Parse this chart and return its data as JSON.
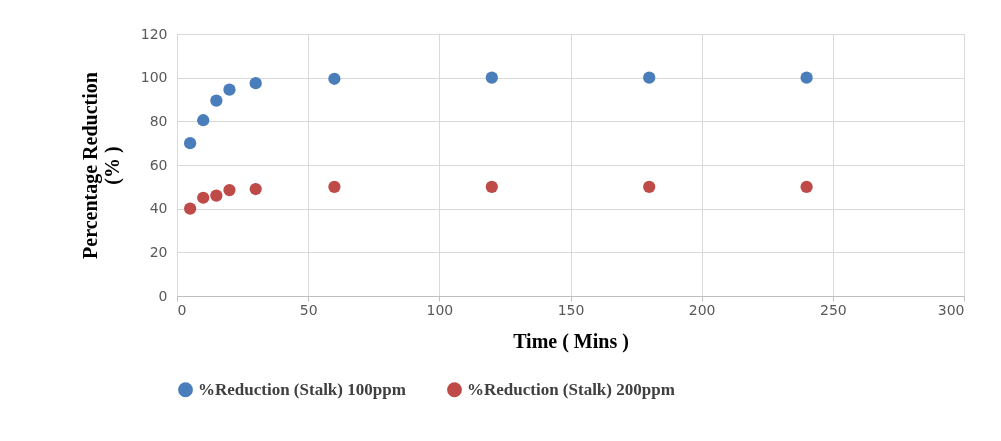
{
  "chart_data": {
    "type": "scatter",
    "xlabel": "Time ( Mins )",
    "ylabel": "Percentage Reduction\n(% )",
    "x": [
      5,
      10,
      15,
      20,
      30,
      60,
      120,
      180,
      240
    ],
    "series": [
      {
        "name": "%Reduction (Stalk) 100ppm",
        "color": "#4a7ebb",
        "values": [
          70,
          80.5,
          89.5,
          94.5,
          97.5,
          99.5,
          100,
          100,
          100
        ]
      },
      {
        "name": "%Reduction (Stalk) 200ppm",
        "color": "#be4b48",
        "values": [
          40,
          45,
          46,
          48.5,
          49,
          50,
          50,
          50,
          50
        ]
      }
    ],
    "xlim": [
      0,
      300
    ],
    "xticks": [
      0,
      50,
      100,
      150,
      200,
      250,
      300
    ],
    "ylim": [
      0,
      120
    ],
    "yticks": [
      0,
      20,
      40,
      60,
      80,
      100,
      120
    ],
    "grid": true,
    "legend": "bottom",
    "marker": "circle"
  }
}
